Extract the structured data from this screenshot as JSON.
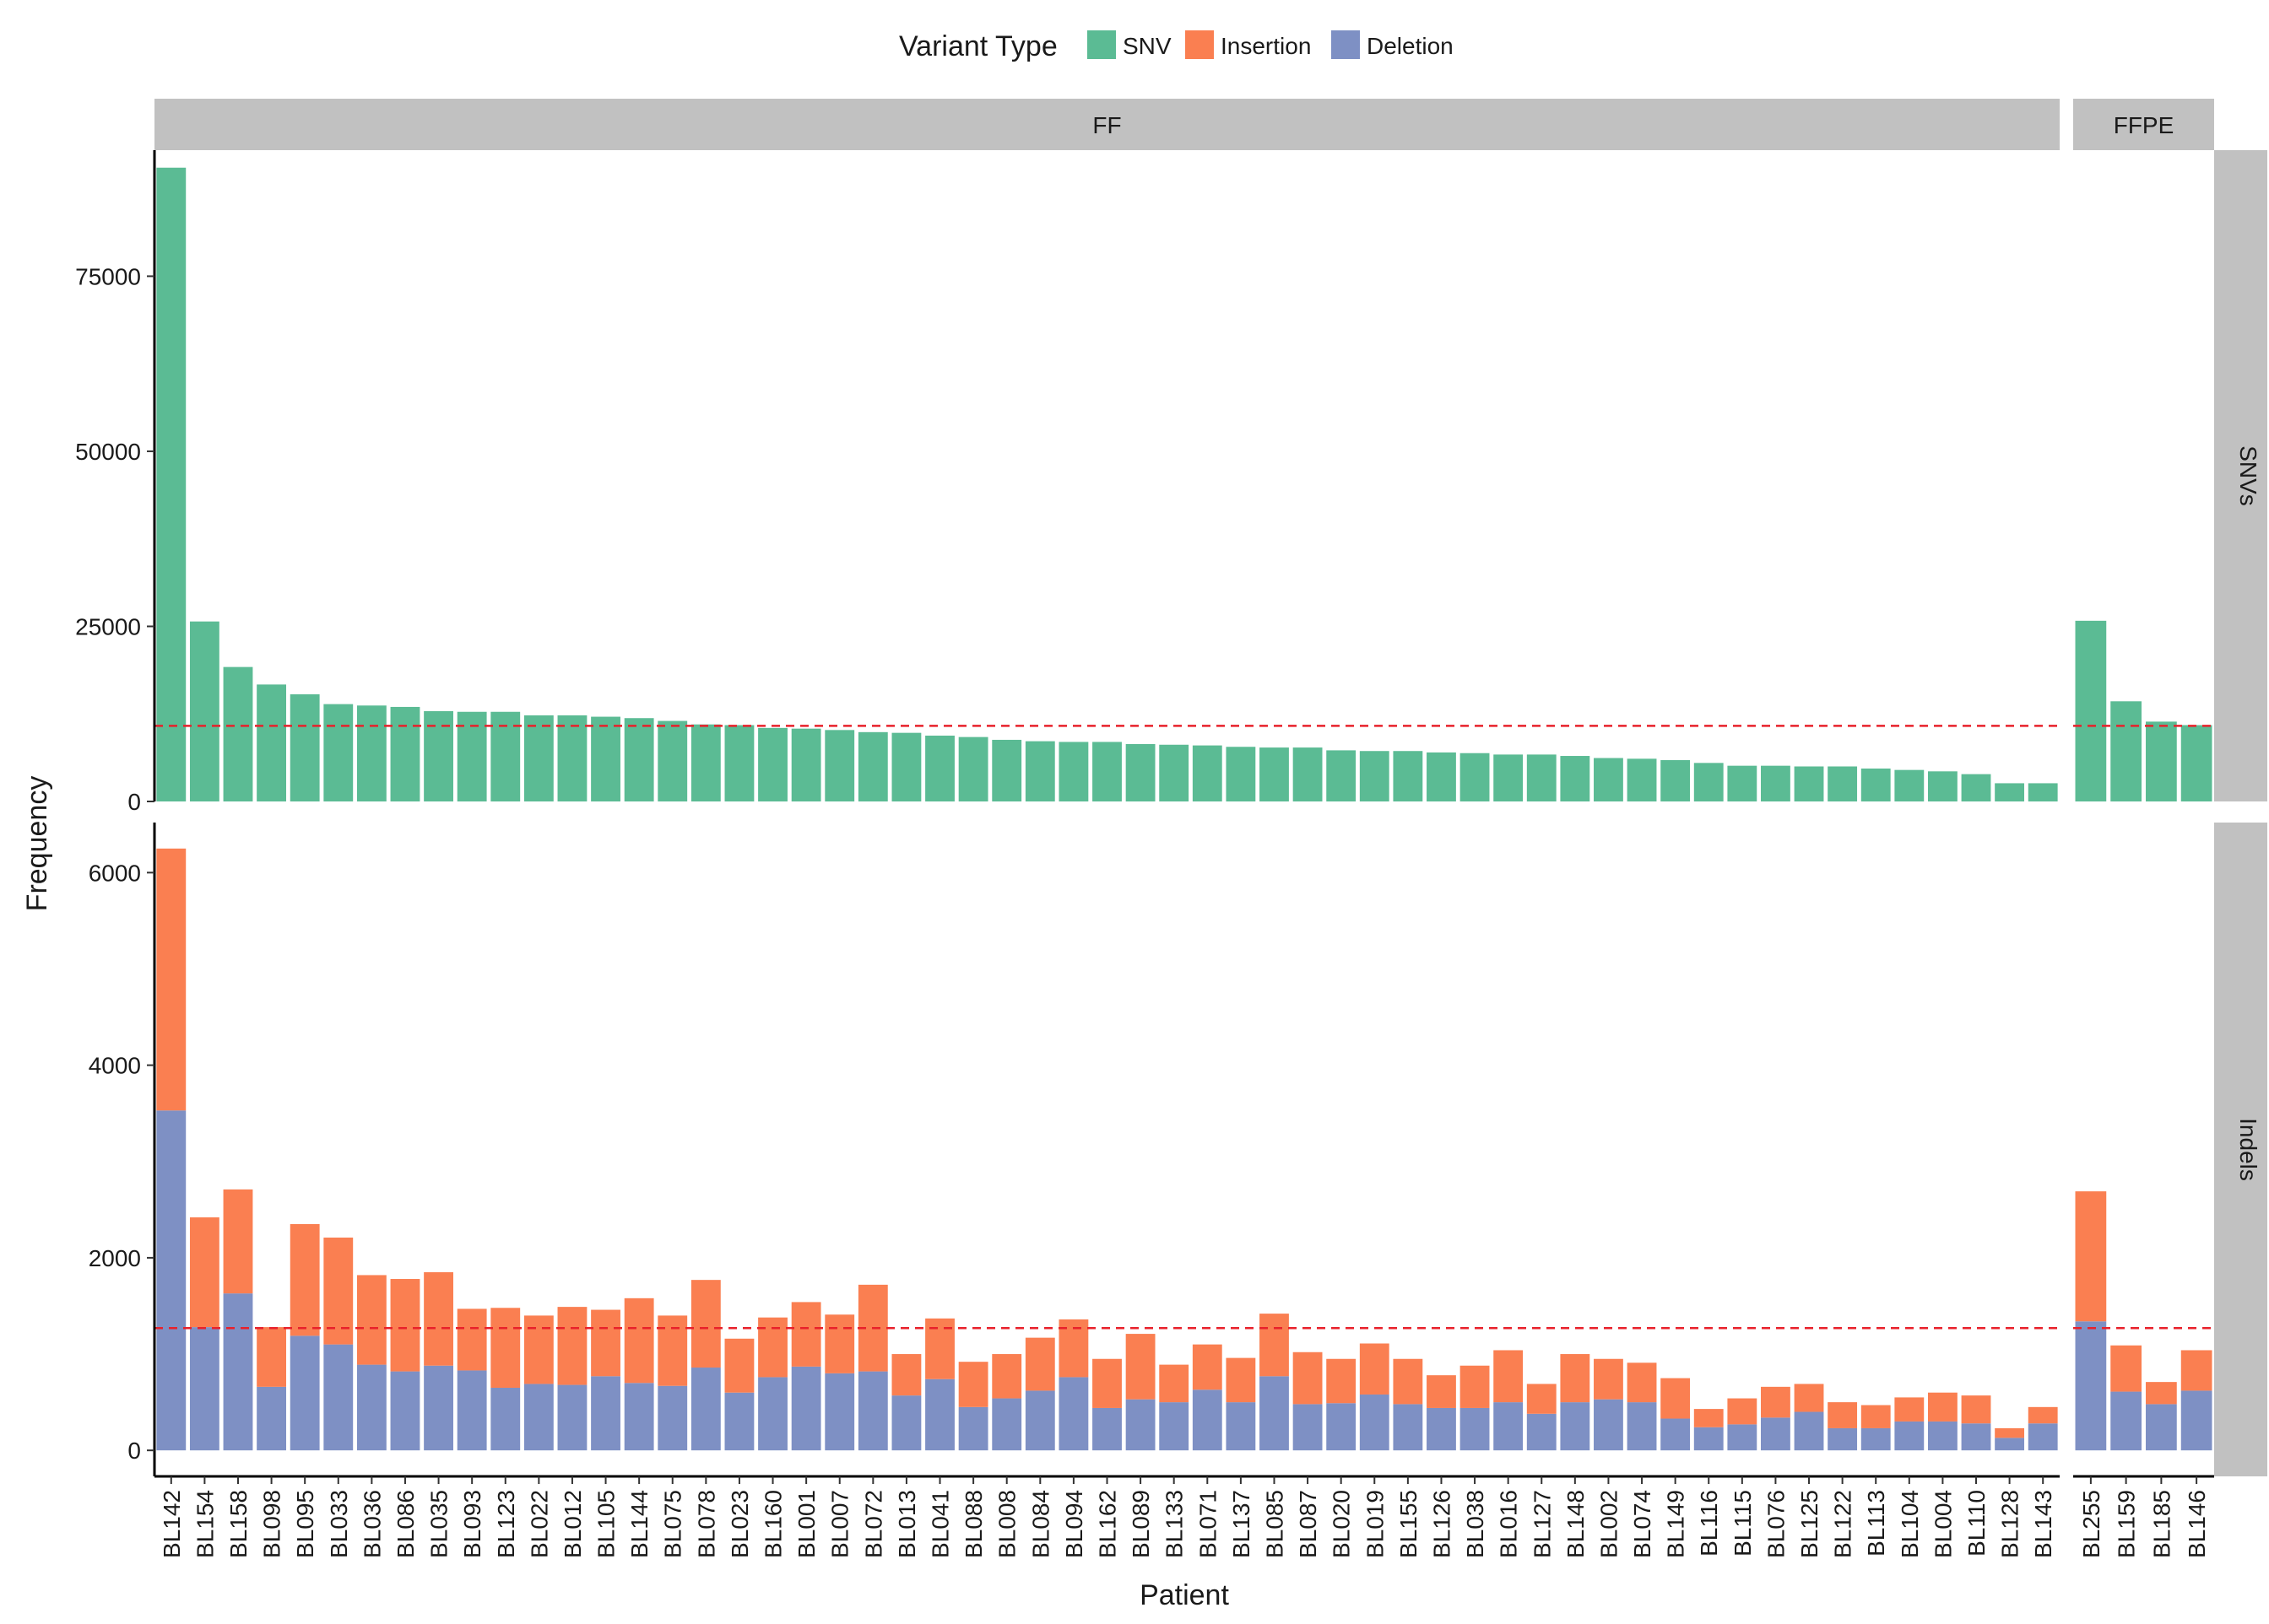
{
  "chart_data": {
    "type": "bar",
    "stacked": true,
    "xlabel": "Patient",
    "ylabel": "Frequency",
    "legend": {
      "title": "Variant Type",
      "placement": "top",
      "entries": [
        {
          "name": "SNV",
          "color": "#5bbb94"
        },
        {
          "name": "Insertion",
          "color": "#fa7f51"
        },
        {
          "name": "Deletion",
          "color": "#7e90c4"
        }
      ]
    },
    "facet_columns": [
      {
        "label": "FF",
        "categories": [
          "BL142",
          "BL154",
          "BL158",
          "BL098",
          "BL095",
          "BL033",
          "BL036",
          "BL086",
          "BL035",
          "BL093",
          "BL123",
          "BL022",
          "BL012",
          "BL105",
          "BL144",
          "BL075",
          "BL078",
          "BL023",
          "BL160",
          "BL001",
          "BL007",
          "BL072",
          "BL013",
          "BL041",
          "BL088",
          "BL008",
          "BL084",
          "BL094",
          "BL162",
          "BL089",
          "BL133",
          "BL071",
          "BL137",
          "BL085",
          "BL087",
          "BL020",
          "BL019",
          "BL155",
          "BL126",
          "BL038",
          "BL016",
          "BL127",
          "BL148",
          "BL002",
          "BL074",
          "BL149",
          "BL116",
          "BL115",
          "BL076",
          "BL125",
          "BL122",
          "BL113",
          "BL104",
          "BL004",
          "BL110",
          "BL128",
          "BL143"
        ]
      },
      {
        "label": "FFPE",
        "categories": [
          "BL255",
          "BL159",
          "BL185",
          "BL146"
        ]
      }
    ],
    "facet_rows": [
      {
        "label": "SNVs",
        "ylim": [
          0,
          93000
        ],
        "yticks": [
          0,
          25000,
          50000,
          75000
        ],
        "reference_line": 10800,
        "series": [
          {
            "name": "SNV",
            "values": {
              "FF": [
                90500,
                25700,
                19200,
                16700,
                15300,
                13900,
                13700,
                13500,
                12900,
                12800,
                12800,
                12300,
                12300,
                12100,
                11900,
                11500,
                11000,
                10900,
                10500,
                10400,
                10200,
                9900,
                9800,
                9400,
                9200,
                8800,
                8600,
                8500,
                8500,
                8200,
                8100,
                8000,
                7800,
                7700,
                7700,
                7300,
                7200,
                7200,
                7000,
                6900,
                6700,
                6700,
                6500,
                6200,
                6100,
                5900,
                5500,
                5100,
                5100,
                5000,
                5000,
                4700,
                4500,
                4300,
                3900,
                2600,
                2600
              ],
              "FFPE": [
                25800,
                14300,
                11400,
                10900
              ]
            }
          }
        ]
      },
      {
        "label": "Indels",
        "ylim": [
          -270,
          6520
        ],
        "yticks": [
          0,
          2000,
          4000,
          6000
        ],
        "reference_line": 1270,
        "series": [
          {
            "name": "Deletion",
            "values": {
              "FF": [
                3530,
                1280,
                1630,
                660,
                1190,
                1100,
                890,
                820,
                880,
                830,
                650,
                690,
                680,
                770,
                700,
                670,
                860,
                600,
                760,
                870,
                800,
                820,
                570,
                740,
                450,
                540,
                620,
                760,
                440,
                530,
                500,
                630,
                500,
                770,
                480,
                490,
                580,
                480,
                440,
                440,
                500,
                380,
                500,
                530,
                500,
                330,
                240,
                270,
                340,
                400,
                230,
                230,
                300,
                300,
                280,
                130,
                280
              ],
              "FFPE": [
                1340,
                610,
                480,
                620
              ]
            }
          },
          {
            "name": "Insertion",
            "values": {
              "FF": [
                2720,
                1140,
                1080,
                620,
                1160,
                1110,
                930,
                960,
                970,
                640,
                830,
                710,
                810,
                690,
                880,
                730,
                910,
                560,
                620,
                670,
                610,
                900,
                430,
                630,
                470,
                460,
                550,
                600,
                510,
                680,
                390,
                470,
                460,
                650,
                540,
                460,
                530,
                470,
                340,
                440,
                540,
                310,
                500,
                420,
                410,
                420,
                190,
                270,
                320,
                290,
                270,
                240,
                250,
                300,
                290,
                100,
                170
              ],
              "FFPE": [
                1350,
                480,
                230,
                420
              ]
            }
          }
        ]
      }
    ]
  }
}
